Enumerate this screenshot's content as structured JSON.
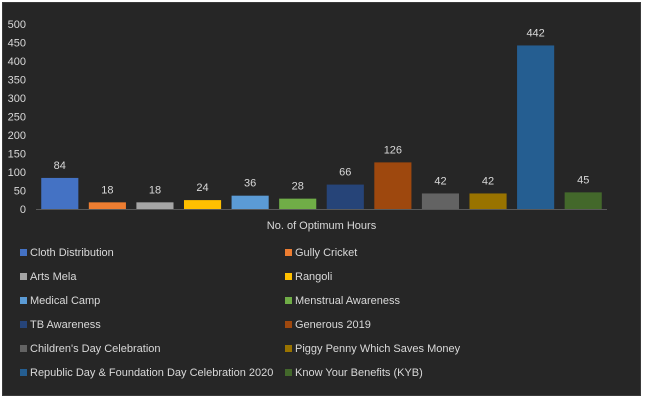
{
  "chart_data": {
    "type": "bar",
    "xlabel": "No. of Optimum Hours",
    "ylabel": "",
    "ylim": [
      0,
      500
    ],
    "yticks": [
      0,
      50,
      100,
      150,
      200,
      250,
      300,
      350,
      400,
      450,
      500
    ],
    "grid": false,
    "legend_position": "bottom",
    "legend_columns": 2,
    "series": [
      {
        "name": "Cloth Distribution",
        "value": 84,
        "color": "#4472c4"
      },
      {
        "name": "Gully Cricket",
        "value": 18,
        "color": "#ed7d31"
      },
      {
        "name": "Arts Mela",
        "value": 18,
        "color": "#a5a5a5"
      },
      {
        "name": "Rangoli",
        "value": 24,
        "color": "#ffc000"
      },
      {
        "name": "Medical Camp",
        "value": 36,
        "color": "#5b9bd5"
      },
      {
        "name": "Menstrual Awareness",
        "value": 28,
        "color": "#70ad47"
      },
      {
        "name": "TB Awareness",
        "value": 66,
        "color": "#264478"
      },
      {
        "name": "Generous 2019",
        "value": 126,
        "color": "#9e480e"
      },
      {
        "name": "Children's Day Celebration",
        "value": 42,
        "color": "#636363"
      },
      {
        "name": "Piggy Penny Which Saves Money",
        "value": 42,
        "color": "#997300"
      },
      {
        "name": "Republic Day & Foundation Day Celebration 2020",
        "value": 442,
        "color": "#255e91"
      },
      {
        "name": "Know Your Benefits (KYB)",
        "value": 45,
        "color": "#43682b"
      }
    ]
  }
}
